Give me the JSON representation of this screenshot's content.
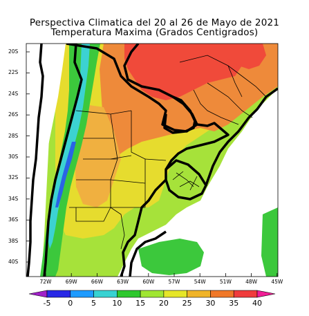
{
  "title_line1": "Perspectiva Climatica del 20 al 26 de Mayo de 2021",
  "title_line2": "Temperatura Maxima (Grados Centigrados)",
  "lat_labels": [
    "20S",
    "22S",
    "24S",
    "26S",
    "28S",
    "30S",
    "32S",
    "34S",
    "36S",
    "38S",
    "40S"
  ],
  "lon_labels": [
    "72W",
    "69W",
    "66W",
    "63W",
    "60W",
    "57W",
    "54W",
    "51W",
    "48W",
    "45W"
  ],
  "colorbar": {
    "ticks": [
      "-5",
      "0",
      "5",
      "10",
      "15",
      "20",
      "25",
      "30",
      "35",
      "40"
    ],
    "colors": [
      "#a020c8",
      "#2828e6",
      "#1e9bff",
      "#38d2d2",
      "#2ec82e",
      "#a0e632",
      "#e6e628",
      "#f0b428",
      "#f07828",
      "#f03c3c",
      "#f01e96"
    ]
  },
  "colors": {
    "hot": "#f04a3a",
    "orange": "#ee8a3a",
    "light_orange": "#f0b040",
    "yellow": "#e6dc2e",
    "yellow_green": "#a6e23a",
    "green": "#3cc83c",
    "cyan": "#3cd2d2",
    "blue": "#2a64e6",
    "ocean": "#ffffff"
  }
}
